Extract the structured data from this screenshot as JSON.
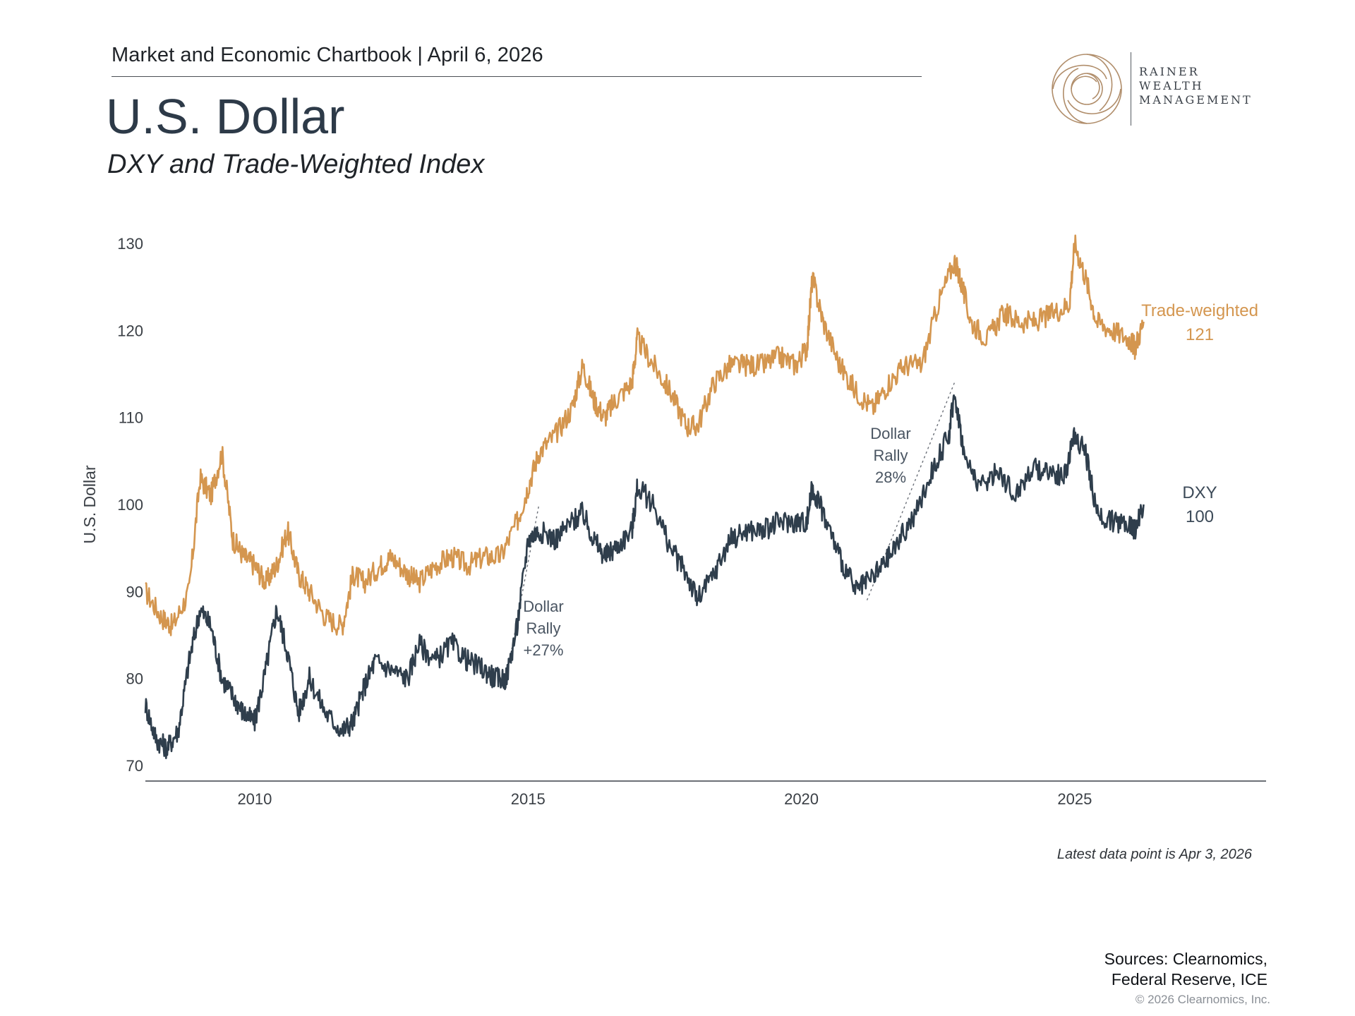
{
  "header": {
    "line": "Market and Economic Chartbook | April 6, 2026",
    "title": "U.S. Dollar",
    "subtitle": "DXY and Trade-Weighted Index"
  },
  "logo": {
    "line1": "RAINER",
    "line2": "WEALTH",
    "line3": "MANAGEMENT",
    "color": "#B08D6A"
  },
  "footer": {
    "note": "Latest data point is Apr 3, 2026",
    "sources_line1": "Sources: Clearnomics,",
    "sources_line2": "Federal Reserve, ICE",
    "copyright": "© 2026 Clearnomics, Inc."
  },
  "chart_data": {
    "type": "line",
    "ylabel": "U.S. Dollar",
    "xlabel": "",
    "xlim": [
      2008.0,
      2028.5
    ],
    "ylim": [
      70,
      130
    ],
    "x_ticks": [
      2010,
      2015,
      2020,
      2025
    ],
    "x_tick_labels": [
      "2010",
      "2015",
      "2020",
      "2025"
    ],
    "y_ticks": [
      70,
      80,
      90,
      100,
      110,
      120,
      130
    ],
    "y_tick_labels": [
      "70",
      "80",
      "90",
      "100",
      "110",
      "120",
      "130"
    ],
    "grid": false,
    "series": [
      {
        "name": "Trade-weighted",
        "end_label": "121",
        "color": "#D4964F",
        "x": [
          2008.0,
          2008.3,
          2008.5,
          2008.8,
          2009.0,
          2009.2,
          2009.4,
          2009.6,
          2009.8,
          2010.0,
          2010.2,
          2010.4,
          2010.6,
          2010.8,
          2011.0,
          2011.3,
          2011.6,
          2011.8,
          2012.0,
          2012.3,
          2012.5,
          2012.8,
          2013.0,
          2013.3,
          2013.6,
          2013.9,
          2014.2,
          2014.5,
          2014.8,
          2015.0,
          2015.2,
          2015.5,
          2015.8,
          2016.0,
          2016.2,
          2016.4,
          2016.6,
          2016.9,
          2017.0,
          2017.3,
          2017.6,
          2017.9,
          2018.1,
          2018.4,
          2018.7,
          2019.0,
          2019.3,
          2019.6,
          2019.9,
          2020.1,
          2020.2,
          2020.4,
          2020.7,
          2021.0,
          2021.3,
          2021.6,
          2021.9,
          2022.2,
          2022.5,
          2022.8,
          2022.9,
          2023.1,
          2023.4,
          2023.7,
          2024.0,
          2024.3,
          2024.6,
          2024.9,
          2025.0,
          2025.2,
          2025.4,
          2025.7,
          2026.0,
          2026.1,
          2026.26
        ],
        "values": [
          90,
          87,
          86,
          90,
          103,
          101,
          106,
          96,
          94,
          93,
          91,
          93,
          97,
          92,
          90,
          87,
          86,
          92,
          91,
          93,
          94,
          92,
          91,
          93,
          94,
          93,
          94,
          94,
          98,
          102,
          106,
          108,
          111,
          116,
          112,
          110,
          112,
          114,
          119,
          116,
          113,
          109,
          109,
          114,
          116,
          116,
          116,
          117,
          116,
          118,
          126,
          121,
          116,
          113,
          111,
          114,
          116,
          116,
          123,
          128,
          126,
          121,
          119,
          122,
          121,
          121,
          122,
          123,
          130,
          126,
          121,
          120,
          119,
          118,
          121
        ]
      },
      {
        "name": "DXY",
        "end_label": "100",
        "color": "#2F3E4C",
        "x": [
          2008.0,
          2008.2,
          2008.4,
          2008.6,
          2008.8,
          2009.0,
          2009.2,
          2009.4,
          2009.6,
          2009.8,
          2010.0,
          2010.2,
          2010.4,
          2010.6,
          2010.8,
          2011.0,
          2011.3,
          2011.6,
          2011.8,
          2012.0,
          2012.2,
          2012.5,
          2012.8,
          2013.0,
          2013.3,
          2013.6,
          2013.9,
          2014.2,
          2014.4,
          2014.6,
          2014.8,
          2015.0,
          2015.2,
          2015.5,
          2015.8,
          2016.0,
          2016.2,
          2016.4,
          2016.6,
          2016.9,
          2017.0,
          2017.3,
          2017.6,
          2017.9,
          2018.1,
          2018.4,
          2018.7,
          2019.0,
          2019.3,
          2019.6,
          2019.9,
          2020.1,
          2020.2,
          2020.4,
          2020.7,
          2021.0,
          2021.2,
          2021.5,
          2021.8,
          2022.1,
          2022.4,
          2022.7,
          2022.8,
          2023.0,
          2023.3,
          2023.6,
          2023.9,
          2024.2,
          2024.5,
          2024.8,
          2025.0,
          2025.2,
          2025.4,
          2025.7,
          2026.0,
          2026.1,
          2026.26
        ],
        "values": [
          77,
          73,
          72,
          74,
          82,
          88,
          86,
          80,
          78,
          76,
          75,
          81,
          88,
          83,
          76,
          80,
          76,
          74,
          75,
          79,
          82,
          81,
          80,
          84,
          82,
          84,
          82,
          81,
          80,
          80,
          86,
          96,
          97,
          96,
          98,
          99,
          96,
          94,
          95,
          97,
          102,
          100,
          95,
          92,
          89,
          92,
          96,
          97,
          97,
          98,
          98,
          98,
          102,
          99,
          94,
          90,
          91,
          93,
          96,
          99,
          104,
          108,
          113,
          105,
          102,
          104,
          101,
          104,
          104,
          103,
          108,
          106,
          99,
          98,
          98,
          97,
          100
        ]
      }
    ],
    "annotations": [
      {
        "text_lines": [
          "Dollar",
          "Rally",
          "+27%"
        ],
        "x_start": 2014.6,
        "y_start": 80,
        "x_end": 2015.2,
        "y_end": 100
      },
      {
        "text_lines": [
          "Dollar",
          "Rally",
          "28%"
        ],
        "x_start": 2021.2,
        "y_start": 89,
        "x_end": 2022.8,
        "y_end": 114
      }
    ]
  }
}
